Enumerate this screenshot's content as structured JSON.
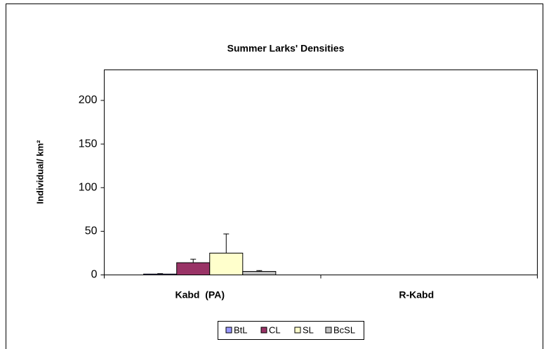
{
  "chart_data": {
    "type": "bar",
    "title": "Summer Larks' Densities",
    "y_label": "Individual/ km²",
    "categories": [
      "Kabd  (PA)",
      "R-Kabd"
    ],
    "series": [
      {
        "name": "BtL",
        "color": "#9999ff",
        "values": [
          1,
          0
        ],
        "errors": [
          0.5,
          0
        ]
      },
      {
        "name": "CL",
        "color": "#993366",
        "values": [
          14,
          0
        ],
        "errors": [
          4,
          0
        ]
      },
      {
        "name": "SL",
        "color": "#ffffcc",
        "values": [
          25,
          0
        ],
        "errors": [
          22,
          0
        ]
      },
      {
        "name": "BcSL",
        "color": "#c0c0c0",
        "values": [
          4,
          0
        ],
        "errors": [
          1,
          0
        ]
      }
    ],
    "ylim": [
      0,
      235
    ],
    "yticks": [
      0,
      50,
      100,
      150,
      200
    ],
    "grid": false
  }
}
